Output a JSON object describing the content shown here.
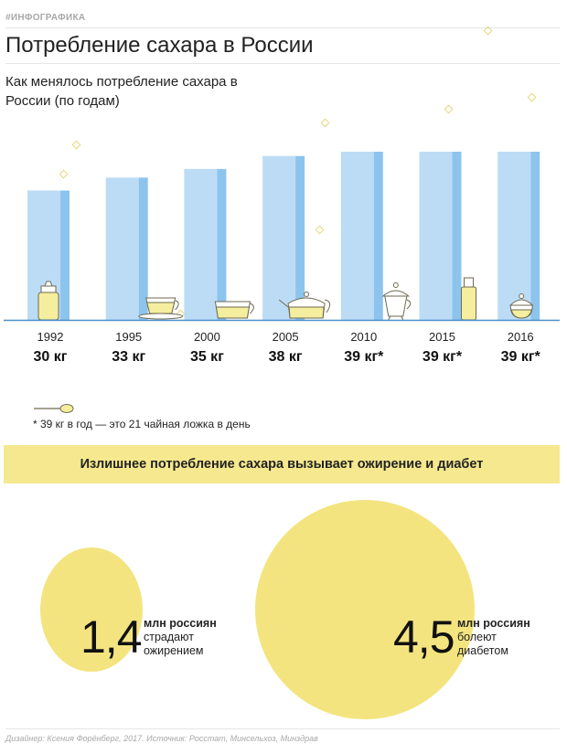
{
  "header": {
    "tag": "#ИНФОГРАФИКА",
    "title": "Потребление сахара в России",
    "subtitle": "Как менялось потребление сахара в России (по годам)"
  },
  "chart_data": {
    "type": "bar",
    "categories": [
      "1992",
      "1995",
      "2000",
      "2005",
      "2010",
      "2015",
      "2016"
    ],
    "values": [
      30,
      33,
      35,
      38,
      39,
      39,
      39
    ],
    "value_labels": [
      "30 кг",
      "33 кг",
      "35 кг",
      "38 кг",
      "39 кг*",
      "39 кг*",
      "39 кг*"
    ],
    "unit": "кг",
    "ylim": [
      0,
      39
    ],
    "grid": false,
    "colors": {
      "bar": "#bcdcf6",
      "bar_shade": "#8cc4ee",
      "baseline": "#4a90c8",
      "ware": "#f5ee9e",
      "ware_stroke": "#6f6a52"
    },
    "icons": [
      "sugar-dispenser-icon",
      "teacup-saucer-icon",
      "teacup-icon",
      "teapot-icon",
      "sugar-pot-icon",
      "sugar-bottle-icon",
      "sugar-bowl-icon"
    ]
  },
  "footnote": {
    "icon": "teaspoon-icon",
    "text": "* 39 кг в год — это 21 чайная ложка в день"
  },
  "banner": {
    "text": "Излишнее потребление сахара вызывает ожирение и диабет"
  },
  "stats": [
    {
      "number": "1,4",
      "unit": "млн россиян",
      "line1": "страдают",
      "line2": "ожирением"
    },
    {
      "number": "4,5",
      "unit": "млн россиян",
      "line1": "болеют",
      "line2": "диабетом"
    }
  ],
  "colors": {
    "accent_yellow": "#f3e47f",
    "banner_yellow": "#f5e88e"
  },
  "credits": "Дизайнер: Ксения Форёнберг, 2017. Источник: Росстат, Минсельхоз, Минздрав"
}
